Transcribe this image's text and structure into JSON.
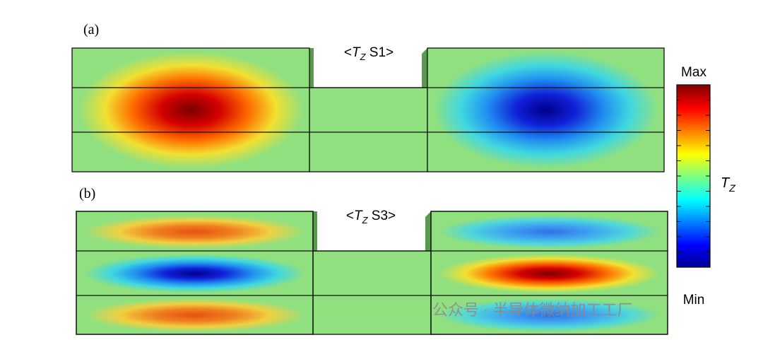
{
  "panels": [
    {
      "label": "(a)",
      "title": {
        "open": "<",
        "symbol": "T",
        "subscript": "Z",
        "rest": " S1>"
      }
    },
    {
      "label": "(b)",
      "title": {
        "open": "<",
        "symbol": "T",
        "subscript": "Z",
        "rest": " S3>"
      }
    }
  ],
  "colorbar": {
    "max": "Max",
    "min": "Min",
    "symbol": "T",
    "subscript": "Z"
  },
  "watermark": "公众号 · 半导体微纳加工工厂"
}
